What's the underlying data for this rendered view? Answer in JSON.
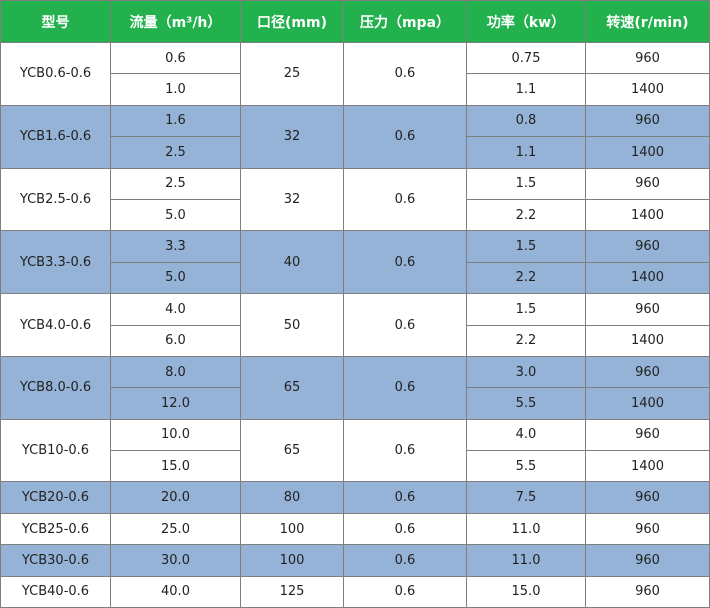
{
  "table": {
    "header": [
      "型号",
      "流量（m³/h）",
      "口径(mm)",
      "压力（mpa）",
      "功率（kw）",
      "转速(r/min)"
    ],
    "groups": [
      {
        "model": "YCB0.6-0.6",
        "bore": "25",
        "pressure": "0.6",
        "rows": [
          [
            "0.6",
            "0.75",
            "960"
          ],
          [
            "1.0",
            "1.1",
            "1400"
          ]
        ]
      },
      {
        "model": "YCB1.6-0.6",
        "bore": "32",
        "pressure": "0.6",
        "rows": [
          [
            "1.6",
            "0.8",
            "960"
          ],
          [
            "2.5",
            "1.1",
            "1400"
          ]
        ]
      },
      {
        "model": "YCB2.5-0.6",
        "bore": "32",
        "pressure": "0.6",
        "rows": [
          [
            "2.5",
            "1.5",
            "960"
          ],
          [
            "5.0",
            "2.2",
            "1400"
          ]
        ]
      },
      {
        "model": "YCB3.3-0.6",
        "bore": "40",
        "pressure": "0.6",
        "rows": [
          [
            "3.3",
            "1.5",
            "960"
          ],
          [
            "5.0",
            "2.2",
            "1400"
          ]
        ]
      },
      {
        "model": "YCB4.0-0.6",
        "bore": "50",
        "pressure": "0.6",
        "rows": [
          [
            "4.0",
            "1.5",
            "960"
          ],
          [
            "6.0",
            "2.2",
            "1400"
          ]
        ]
      },
      {
        "model": "YCB8.0-0.6",
        "bore": "65",
        "pressure": "0.6",
        "rows": [
          [
            "8.0",
            "3.0",
            "960"
          ],
          [
            "12.0",
            "5.5",
            "1400"
          ]
        ]
      },
      {
        "model": "YCB10-0.6",
        "bore": "65",
        "pressure": "0.6",
        "rows": [
          [
            "10.0",
            "4.0",
            "960"
          ],
          [
            "15.0",
            "5.5",
            "1400"
          ]
        ]
      },
      {
        "model": "YCB20-0.6",
        "bore": "80",
        "pressure": "0.6",
        "rows": [
          [
            "20.0",
            "7.5",
            "960"
          ]
        ]
      },
      {
        "model": "YCB25-0.6",
        "bore": "100",
        "pressure": "0.6",
        "rows": [
          [
            "25.0",
            "11.0",
            "960"
          ]
        ]
      },
      {
        "model": "YCB30-0.6",
        "bore": "100",
        "pressure": "0.6",
        "rows": [
          [
            "30.0",
            "11.0",
            "960"
          ]
        ]
      },
      {
        "model": "YCB40-0.6",
        "bore": "125",
        "pressure": "0.6",
        "rows": [
          [
            "40.0",
            "15.0",
            "960"
          ]
        ]
      }
    ]
  }
}
